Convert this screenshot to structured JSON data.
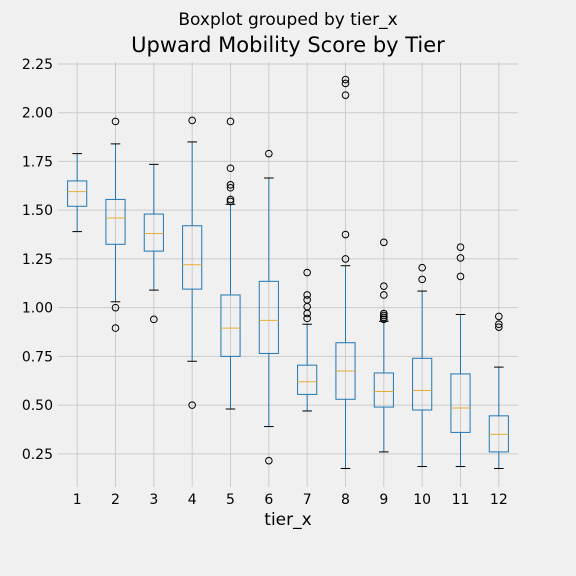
{
  "chart_data": {
    "type": "boxplot",
    "suptitle": "Boxplot grouped by tier_x",
    "title": "Upward Mobility Score by Tier",
    "xlabel": "tier_x",
    "ylabel": "",
    "ylim": [
      0.08,
      2.26
    ],
    "yticks": [
      "0.25",
      "0.50",
      "0.75",
      "1.00",
      "1.25",
      "1.50",
      "1.75",
      "2.00",
      "2.25"
    ],
    "grid": true,
    "colors": {
      "box": "#1f77b4",
      "median": "#e5ae38",
      "whisker": "#000000",
      "grid": "#cbcbcb",
      "background": "#f0f0f0"
    },
    "categories": [
      "1",
      "2",
      "3",
      "4",
      "5",
      "6",
      "7",
      "8",
      "9",
      "10",
      "11",
      "12"
    ],
    "boxes": [
      {
        "category": "1",
        "whisker_low": 1.39,
        "q1": 1.52,
        "median": 1.595,
        "q3": 1.65,
        "whisker_high": 1.79,
        "outliers": []
      },
      {
        "category": "2",
        "whisker_low": 1.03,
        "q1": 1.325,
        "median": 1.46,
        "q3": 1.555,
        "whisker_high": 1.84,
        "outliers": [
          1.955,
          1.0,
          0.895
        ]
      },
      {
        "category": "3",
        "whisker_low": 1.09,
        "q1": 1.29,
        "median": 1.38,
        "q3": 1.48,
        "whisker_high": 1.735,
        "outliers": [
          0.94
        ]
      },
      {
        "category": "4",
        "whisker_low": 0.725,
        "q1": 1.095,
        "median": 1.22,
        "q3": 1.42,
        "whisker_high": 1.85,
        "outliers": [
          1.96,
          0.5
        ]
      },
      {
        "category": "5",
        "whisker_low": 0.48,
        "q1": 0.75,
        "median": 0.895,
        "q3": 1.065,
        "whisker_high": 1.53,
        "outliers": [
          1.955,
          1.715,
          1.63,
          1.615,
          1.555,
          1.545
        ]
      },
      {
        "category": "6",
        "whisker_low": 0.39,
        "q1": 0.765,
        "median": 0.935,
        "q3": 1.135,
        "whisker_high": 1.665,
        "outliers": [
          1.79,
          0.215
        ]
      },
      {
        "category": "7",
        "whisker_low": 0.47,
        "q1": 0.555,
        "median": 0.62,
        "q3": 0.705,
        "whisker_high": 0.915,
        "outliers": [
          1.18,
          1.065,
          1.04,
          1.005,
          0.97,
          0.945
        ]
      },
      {
        "category": "8",
        "whisker_low": 0.175,
        "q1": 0.53,
        "median": 0.675,
        "q3": 0.82,
        "whisker_high": 1.215,
        "outliers": [
          2.17,
          2.15,
          2.09,
          1.375,
          1.25
        ]
      },
      {
        "category": "9",
        "whisker_low": 0.26,
        "q1": 0.49,
        "median": 0.57,
        "q3": 0.665,
        "whisker_high": 0.93,
        "outliers": [
          1.335,
          1.11,
          1.065,
          0.97,
          0.96,
          0.95,
          0.94
        ]
      },
      {
        "category": "10",
        "whisker_low": 0.185,
        "q1": 0.475,
        "median": 0.575,
        "q3": 0.74,
        "whisker_high": 1.085,
        "outliers": [
          1.205,
          1.145
        ]
      },
      {
        "category": "11",
        "whisker_low": 0.185,
        "q1": 0.36,
        "median": 0.485,
        "q3": 0.66,
        "whisker_high": 0.965,
        "outliers": [
          1.31,
          1.255,
          1.16
        ]
      },
      {
        "category": "12",
        "whisker_low": 0.175,
        "q1": 0.26,
        "median": 0.35,
        "q3": 0.445,
        "whisker_high": 0.695,
        "outliers": [
          0.955,
          0.915,
          0.9
        ]
      }
    ]
  }
}
